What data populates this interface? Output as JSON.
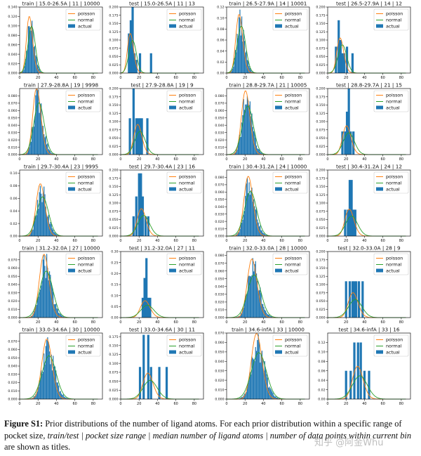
{
  "figure": {
    "legend_labels": [
      "poisson",
      "normal",
      "actual"
    ],
    "colors": {
      "poisson": "#ff7f0e",
      "normal": "#2ca02c",
      "actual": "#1f77b4"
    },
    "xticks": [
      0,
      20,
      40,
      60,
      80
    ]
  },
  "caption": {
    "label": "Figure S1:",
    "text1": " Prior distributions of the number of ligand atoms. For each prior distribution within a specific range of pocket size, ",
    "italic1": "train/test | pocket size range | median number of ligand atoms | number of data points within current bin",
    "text2": " are shown as titles."
  },
  "watermark": "知乎 @阿金Whu",
  "chart_data": [
    {
      "type": "bar",
      "title": "train | 15.0-26.5A | 11 | 10000",
      "median": 11,
      "n": 10000,
      "xlim": [
        0,
        90
      ],
      "ylim": [
        0,
        0.14
      ],
      "yticks": [
        0.0,
        0.02,
        0.04,
        0.06,
        0.08,
        0.1,
        0.12,
        0.14
      ],
      "mode": "hist",
      "spread": 0.55
    },
    {
      "type": "bar",
      "title": "test | 15.0-26.5A | 11 | 13",
      "median": 11,
      "n": 13,
      "xlim": [
        0,
        90
      ],
      "ylim": [
        0,
        0.2
      ],
      "yticks": [
        0.0,
        0.025,
        0.05,
        0.075,
        0.1,
        0.125,
        0.15,
        0.175,
        0.2
      ],
      "mode": "sparse",
      "bars": [
        [
          9,
          0.12
        ],
        [
          11,
          0.16
        ],
        [
          13,
          0.2
        ],
        [
          15,
          0.06
        ],
        [
          17,
          0.04
        ],
        [
          21,
          0.06
        ],
        [
          33,
          0.06
        ]
      ]
    },
    {
      "type": "bar",
      "title": "train | 26.5-27.9A | 14 | 10001",
      "median": 14,
      "n": 10001,
      "xlim": [
        0,
        90
      ],
      "ylim": [
        0,
        0.12
      ],
      "yticks": [
        0.0,
        0.02,
        0.04,
        0.06,
        0.08,
        0.1,
        0.12
      ],
      "mode": "hist",
      "spread": 0.5
    },
    {
      "type": "bar",
      "title": "test | 26.5-27.9A | 14 | 12",
      "median": 14,
      "n": 12,
      "xlim": [
        0,
        90
      ],
      "ylim": [
        0,
        0.2
      ],
      "yticks": [
        0.0,
        0.025,
        0.05,
        0.075,
        0.1,
        0.125,
        0.15,
        0.175,
        0.2
      ],
      "mode": "sparse",
      "bars": [
        [
          9,
          0.08
        ],
        [
          12,
          0.16
        ],
        [
          14,
          0.1
        ],
        [
          16,
          0.06
        ],
        [
          18,
          0.06
        ],
        [
          21,
          0.08
        ],
        [
          27,
          0.06
        ]
      ]
    },
    {
      "type": "bar",
      "title": "train | 27.9-28.8A | 19 | 9998",
      "median": 19,
      "n": 9998,
      "xlim": [
        0,
        90
      ],
      "ylim": [
        0,
        0.09
      ],
      "yticks": [
        0.0,
        0.01,
        0.02,
        0.03,
        0.04,
        0.05,
        0.06,
        0.07,
        0.08
      ],
      "mode": "hist",
      "spread": 0.45
    },
    {
      "type": "bar",
      "title": "test | 27.9-28.8A | 19 | 9",
      "median": 19,
      "n": 9,
      "xlim": [
        0,
        90
      ],
      "ylim": [
        0,
        0.2
      ],
      "yticks": [
        0.0,
        0.025,
        0.05,
        0.075,
        0.1,
        0.125,
        0.15,
        0.175,
        0.2
      ],
      "mode": "sparse",
      "bars": [
        [
          10,
          0.11
        ],
        [
          14,
          0.2
        ],
        [
          17,
          0.11
        ],
        [
          19,
          0.11
        ],
        [
          21,
          0.11
        ],
        [
          23,
          0.11
        ],
        [
          29,
          0.11
        ]
      ]
    },
    {
      "type": "bar",
      "title": "train | 28.8-29.7A | 21 | 10005",
      "median": 21,
      "n": 10005,
      "xlim": [
        0,
        90
      ],
      "ylim": [
        0,
        0.09
      ],
      "yticks": [
        0.0,
        0.01,
        0.02,
        0.03,
        0.04,
        0.05,
        0.06,
        0.07,
        0.08
      ],
      "mode": "hist",
      "spread": 0.42
    },
    {
      "type": "bar",
      "title": "test | 28.8-29.7A | 21 | 15",
      "median": 21,
      "n": 15,
      "xlim": [
        0,
        90
      ],
      "ylim": [
        0,
        0.2
      ],
      "yticks": [
        0.0,
        0.025,
        0.05,
        0.075,
        0.1,
        0.125,
        0.15,
        0.175,
        0.2
      ],
      "mode": "sparse",
      "bars": [
        [
          16,
          0.07
        ],
        [
          19,
          0.07
        ],
        [
          21,
          0.13
        ],
        [
          23,
          0.2
        ],
        [
          25,
          0.07
        ],
        [
          28,
          0.07
        ]
      ]
    },
    {
      "type": "bar",
      "title": "train | 29.7-30.4A | 23 | 9995",
      "median": 23,
      "n": 9995,
      "xlim": [
        0,
        90
      ],
      "ylim": [
        0,
        0.105
      ],
      "yticks": [
        0.0,
        0.02,
        0.04,
        0.06,
        0.08,
        0.1
      ],
      "mode": "hist",
      "spread": 0.42
    },
    {
      "type": "bar",
      "title": "test | 29.7-30.4A | 23 | 16",
      "median": 23,
      "n": 16,
      "xlim": [
        0,
        90
      ],
      "ylim": [
        0,
        0.2
      ],
      "yticks": [
        0.0,
        0.025,
        0.05,
        0.075,
        0.1,
        0.125,
        0.15,
        0.175,
        0.2
      ],
      "mode": "sparse",
      "bars": [
        [
          14,
          0.06
        ],
        [
          17,
          0.12
        ],
        [
          20,
          0.19
        ],
        [
          22,
          0.19
        ],
        [
          24,
          0.12
        ],
        [
          27,
          0.06
        ],
        [
          30,
          0.06
        ]
      ]
    },
    {
      "type": "bar",
      "title": "train | 30.4-31.2A | 24 | 10000",
      "median": 24,
      "n": 10000,
      "xlim": [
        0,
        90
      ],
      "ylim": [
        0,
        0.09
      ],
      "yticks": [
        0.0,
        0.01,
        0.02,
        0.03,
        0.04,
        0.05,
        0.06,
        0.07,
        0.08
      ],
      "mode": "hist",
      "spread": 0.4
    },
    {
      "type": "bar",
      "title": "test | 30.4-31.2A | 24 | 12",
      "median": 24,
      "n": 12,
      "xlim": [
        0,
        90
      ],
      "ylim": [
        0,
        0.2
      ],
      "yticks": [
        0.0,
        0.025,
        0.05,
        0.075,
        0.1,
        0.125,
        0.15,
        0.175,
        0.2
      ],
      "mode": "sparse",
      "bars": [
        [
          19,
          0.08
        ],
        [
          22,
          0.08
        ],
        [
          24,
          0.17
        ],
        [
          26,
          0.17
        ],
        [
          28,
          0.08
        ],
        [
          30,
          0.08
        ]
      ]
    },
    {
      "type": "bar",
      "title": "train | 31.2-32.0A | 27 | 10000",
      "median": 27,
      "n": 10000,
      "xlim": [
        0,
        90
      ],
      "ylim": [
        0,
        0.08
      ],
      "yticks": [
        0.0,
        0.01,
        0.02,
        0.03,
        0.04,
        0.05,
        0.06,
        0.07
      ],
      "mode": "hist",
      "spread": 0.4
    },
    {
      "type": "bar",
      "title": "test | 31.2-32.0A | 27 | 11",
      "median": 27,
      "n": 11,
      "xlim": [
        0,
        90
      ],
      "ylim": [
        0,
        0.3
      ],
      "yticks": [
        0.0,
        0.05,
        0.1,
        0.15,
        0.2,
        0.25,
        0.3
      ],
      "mode": "sparse",
      "bars": [
        [
          24,
          0.09
        ],
        [
          26,
          0.18
        ],
        [
          28,
          0.27
        ],
        [
          30,
          0.09
        ],
        [
          32,
          0.09
        ]
      ]
    },
    {
      "type": "bar",
      "title": "train | 32.0-33.0A | 28 | 10000",
      "median": 28,
      "n": 10000,
      "xlim": [
        0,
        90
      ],
      "ylim": [
        0,
        0.085
      ],
      "yticks": [
        0.0,
        0.01,
        0.02,
        0.03,
        0.04,
        0.05,
        0.06,
        0.07,
        0.08
      ],
      "mode": "hist",
      "spread": 0.4
    },
    {
      "type": "bar",
      "title": "test | 32.0-33.0A | 28 | 9",
      "median": 28,
      "n": 9,
      "xlim": [
        0,
        90
      ],
      "ylim": [
        0,
        0.2
      ],
      "yticks": [
        0.0,
        0.025,
        0.05,
        0.075,
        0.1,
        0.125,
        0.15,
        0.175,
        0.2
      ],
      "mode": "sparse",
      "bars": [
        [
          20,
          0.11
        ],
        [
          24,
          0.11
        ],
        [
          27,
          0.11
        ],
        [
          29,
          0.11
        ],
        [
          31,
          0.11
        ],
        [
          34,
          0.11
        ],
        [
          38,
          0.11
        ]
      ]
    },
    {
      "type": "bar",
      "title": "train | 33.0-34.6A | 30 | 10000",
      "median": 30,
      "n": 10000,
      "xlim": [
        0,
        90
      ],
      "ylim": [
        0,
        0.08
      ],
      "yticks": [
        0.0,
        0.01,
        0.02,
        0.03,
        0.04,
        0.05,
        0.06,
        0.07
      ],
      "mode": "hist",
      "spread": 0.4
    },
    {
      "type": "bar",
      "title": "test | 33.0-34.6A | 30 | 11",
      "median": 30,
      "n": 11,
      "xlim": [
        0,
        90
      ],
      "ylim": [
        0,
        0.185
      ],
      "yticks": [
        0.0,
        0.025,
        0.05,
        0.075,
        0.1,
        0.125,
        0.15,
        0.175
      ],
      "mode": "sparse",
      "bars": [
        [
          21,
          0.09
        ],
        [
          25,
          0.18
        ],
        [
          30,
          0.18
        ],
        [
          33,
          0.09
        ],
        [
          42,
          0.09
        ],
        [
          50,
          0.09
        ]
      ]
    },
    {
      "type": "bar",
      "title": "train | 34.6-infA | 33 | 10000",
      "median": 33,
      "n": 10000,
      "xlim": [
        0,
        90
      ],
      "ylim": [
        0,
        0.07
      ],
      "yticks": [
        0.0,
        0.01,
        0.02,
        0.03,
        0.04,
        0.05,
        0.06,
        0.07
      ],
      "mode": "hist",
      "spread": 0.42
    },
    {
      "type": "bar",
      "title": "test | 34.6-infA | 33 | 16",
      "median": 33,
      "n": 16,
      "xlim": [
        0,
        90
      ],
      "ylim": [
        0,
        0.14
      ],
      "yticks": [
        0.0,
        0.02,
        0.04,
        0.06,
        0.08,
        0.1,
        0.12
      ],
      "mode": "sparse",
      "bars": [
        [
          20,
          0.06
        ],
        [
          25,
          0.06
        ],
        [
          29,
          0.12
        ],
        [
          33,
          0.12
        ],
        [
          36,
          0.12
        ],
        [
          40,
          0.06
        ],
        [
          45,
          0.06
        ]
      ]
    }
  ]
}
